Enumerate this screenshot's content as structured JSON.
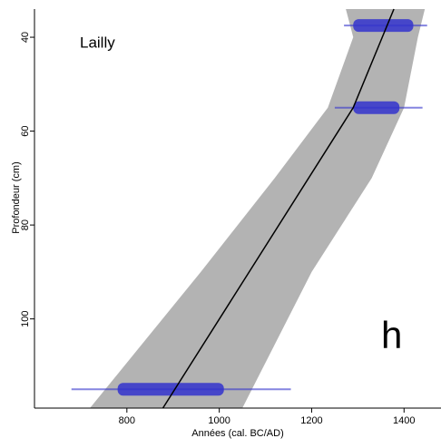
{
  "chart_data": {
    "type": "age-depth",
    "site": "Lailly",
    "panel": "h",
    "xlabel": "Années (cal. BC/AD)",
    "ylabel": "Profondeur (cm)",
    "xlim": [
      600,
      1480
    ],
    "ylim": [
      34,
      119
    ],
    "y_inverted": true,
    "xticks": [
      800,
      1000,
      1200,
      1400
    ],
    "yticks": [
      40,
      60,
      80,
      100
    ],
    "envelope": {
      "color": "#b3b3b3",
      "depth": [
        34,
        40,
        55,
        70,
        90,
        119
      ],
      "lower": [
        1274,
        1290,
        1235,
        1120,
        960,
        720
      ],
      "upper": [
        1445,
        1430,
        1400,
        1330,
        1200,
        1050
      ]
    },
    "median": {
      "color": "#000000",
      "depth": [
        34,
        55,
        119
      ],
      "year": [
        1378,
        1290,
        878
      ]
    },
    "dates": {
      "color": "#3333cc",
      "depth": [
        37.5,
        55,
        115
      ],
      "range_low": [
        1270,
        1250,
        680
      ],
      "range_high": [
        1450,
        1440,
        1155
      ],
      "core_low": [
        1290,
        1290,
        780
      ],
      "core_high": [
        1420,
        1390,
        1010
      ]
    }
  }
}
